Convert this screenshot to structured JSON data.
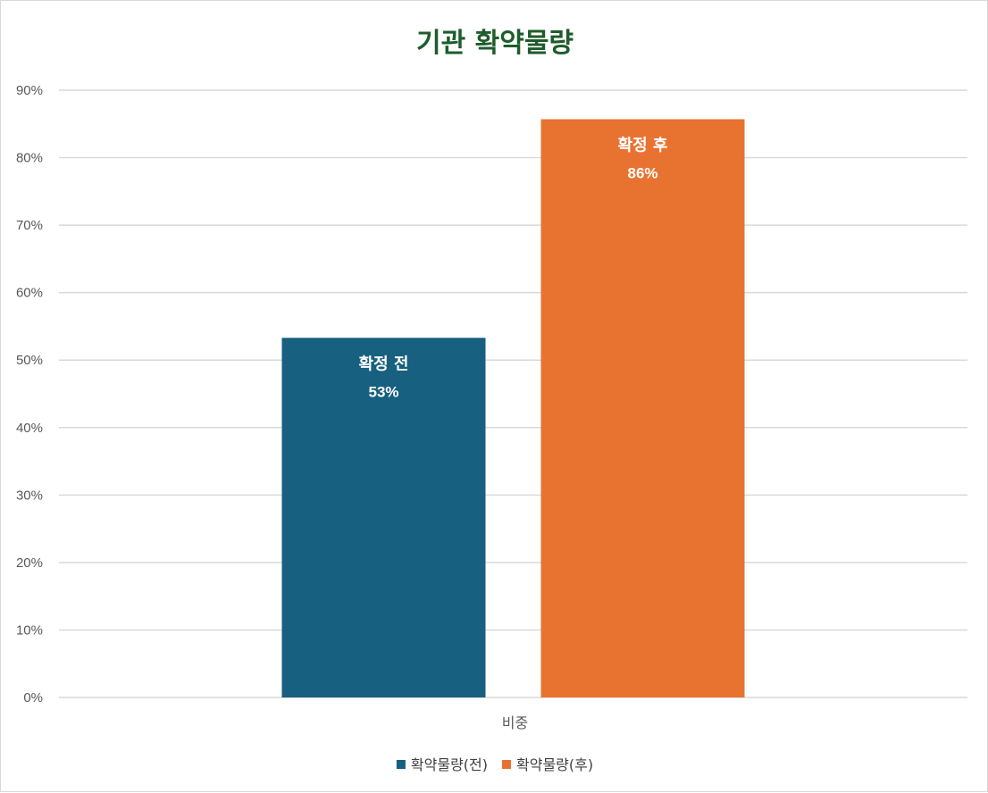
{
  "chart_data": {
    "type": "bar",
    "title": "기관 확약물량",
    "categories": [
      "비중"
    ],
    "series": [
      {
        "name": "확약물량(전)",
        "values": [
          0.533
        ],
        "label": "확정 전",
        "value_label": "53%",
        "color": "#17607f"
      },
      {
        "name": "확약물량(후)",
        "values": [
          0.857
        ],
        "label": "확정 후",
        "value_label": "86%",
        "color": "#e87331"
      }
    ],
    "ylim": [
      0,
      0.9
    ],
    "yticks": [
      0,
      0.1,
      0.2,
      0.3,
      0.4,
      0.5,
      0.6,
      0.7,
      0.8,
      0.9
    ],
    "ytick_labels": [
      "0%",
      "10%",
      "20%",
      "30%",
      "40%",
      "50%",
      "60%",
      "70%",
      "80%",
      "90%"
    ],
    "grid": true,
    "legend": "bottom",
    "xlabel": "",
    "ylabel": ""
  }
}
